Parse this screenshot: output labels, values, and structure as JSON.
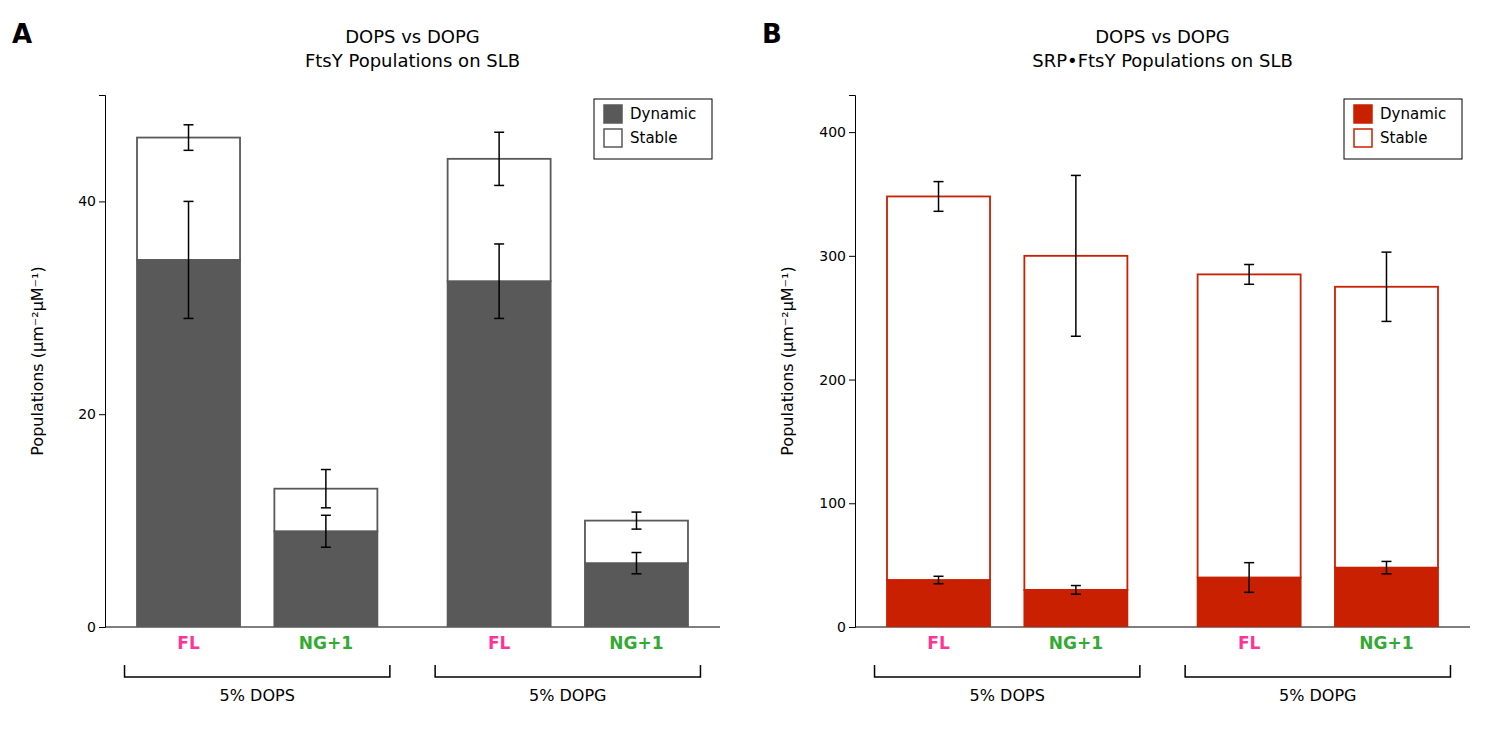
{
  "chart_data": [
    {
      "type": "bar",
      "stacked": true,
      "title": "DOPS vs DOPG",
      "subtitle": "FtsY Populations on SLB",
      "y_label": "Populations (μm⁻²μM⁻¹)",
      "annotations": [
        "A"
      ],
      "categories": [
        "FL",
        "NG+1",
        "FL",
        "NG+1"
      ],
      "category_colors": [
        "#ff3399",
        "#33aa33",
        "#ff3399",
        "#33aa33"
      ],
      "group_labels": [
        "5% DOPS",
        "5% DOPG"
      ],
      "color": "#595959",
      "series": [
        {
          "name": "Dynamic",
          "color": "#595959",
          "values": [
            34.5,
            9.0,
            32.5,
            6.0
          ],
          "errors": [
            5.5,
            1.5,
            3.5,
            1.0
          ]
        },
        {
          "name": "Stable",
          "color": "#ffffff",
          "values": [
            11.5,
            4.0,
            11.5,
            4.0
          ],
          "errors": [
            1.2,
            1.8,
            2.5,
            0.8
          ]
        }
      ],
      "ylim": [
        0,
        50
      ],
      "yticks": [
        0,
        20,
        40
      ],
      "grid": false,
      "legend": "upper right"
    },
    {
      "type": "bar",
      "stacked": true,
      "title": "DOPS vs DOPG",
      "subtitle": "SRP•FtsY Populations on SLB",
      "y_label": "Populations (μm⁻²μM⁻¹)",
      "annotations": [
        "B"
      ],
      "categories": [
        "FL",
        "NG+1",
        "FL",
        "NG+1"
      ],
      "category_colors": [
        "#ff3399",
        "#33aa33",
        "#ff3399",
        "#33aa33"
      ],
      "group_labels": [
        "5% DOPS",
        "5% DOPG"
      ],
      "color": "#c82000",
      "series": [
        {
          "name": "Dynamic",
          "color": "#c82000",
          "values": [
            38.0,
            30.0,
            40.0,
            48.0
          ],
          "errors": [
            3.0,
            3.5,
            12.0,
            5.0
          ]
        },
        {
          "name": "Stable",
          "color": "#ffffff",
          "values": [
            310.0,
            270.0,
            245.0,
            227.0
          ],
          "errors": [
            12.0,
            65.0,
            8.0,
            28.0
          ]
        }
      ],
      "ylim": [
        0,
        430
      ],
      "yticks": [
        0,
        100,
        200,
        300,
        400
      ],
      "grid": false,
      "legend": "upper right"
    }
  ]
}
